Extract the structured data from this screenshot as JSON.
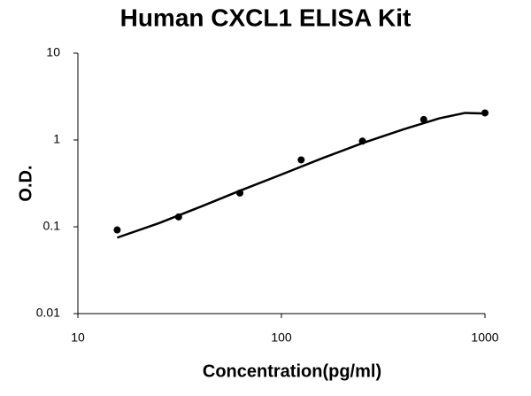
{
  "chart_data": {
    "type": "scatter",
    "title": "Human CXCL1 ELISA Kit",
    "x_label": "Concentration(pg/ml)",
    "y_label": "O.D.",
    "x": [
      15.6,
      31.25,
      62.5,
      125,
      250,
      500,
      1000
    ],
    "series": [
      {
        "color": "#000000",
        "values": [
          0.092,
          0.13,
          0.245,
          0.59,
          0.97,
          1.72,
          2.05
        ]
      }
    ],
    "fit": {
      "color": "#000000",
      "x": [
        15.6,
        25,
        40,
        62.5,
        100,
        160,
        250,
        400,
        600,
        800,
        1000
      ],
      "values": [
        0.075,
        0.11,
        0.17,
        0.26,
        0.4,
        0.62,
        0.92,
        1.33,
        1.78,
        2.05,
        2.02
      ]
    },
    "xscale": "log",
    "yscale": "log",
    "xlim": [
      10,
      1000
    ],
    "ylim": [
      0.01,
      10
    ],
    "xticks": [
      10,
      100,
      1000
    ],
    "yticks": [
      0.01,
      0.1,
      1,
      10
    ]
  }
}
